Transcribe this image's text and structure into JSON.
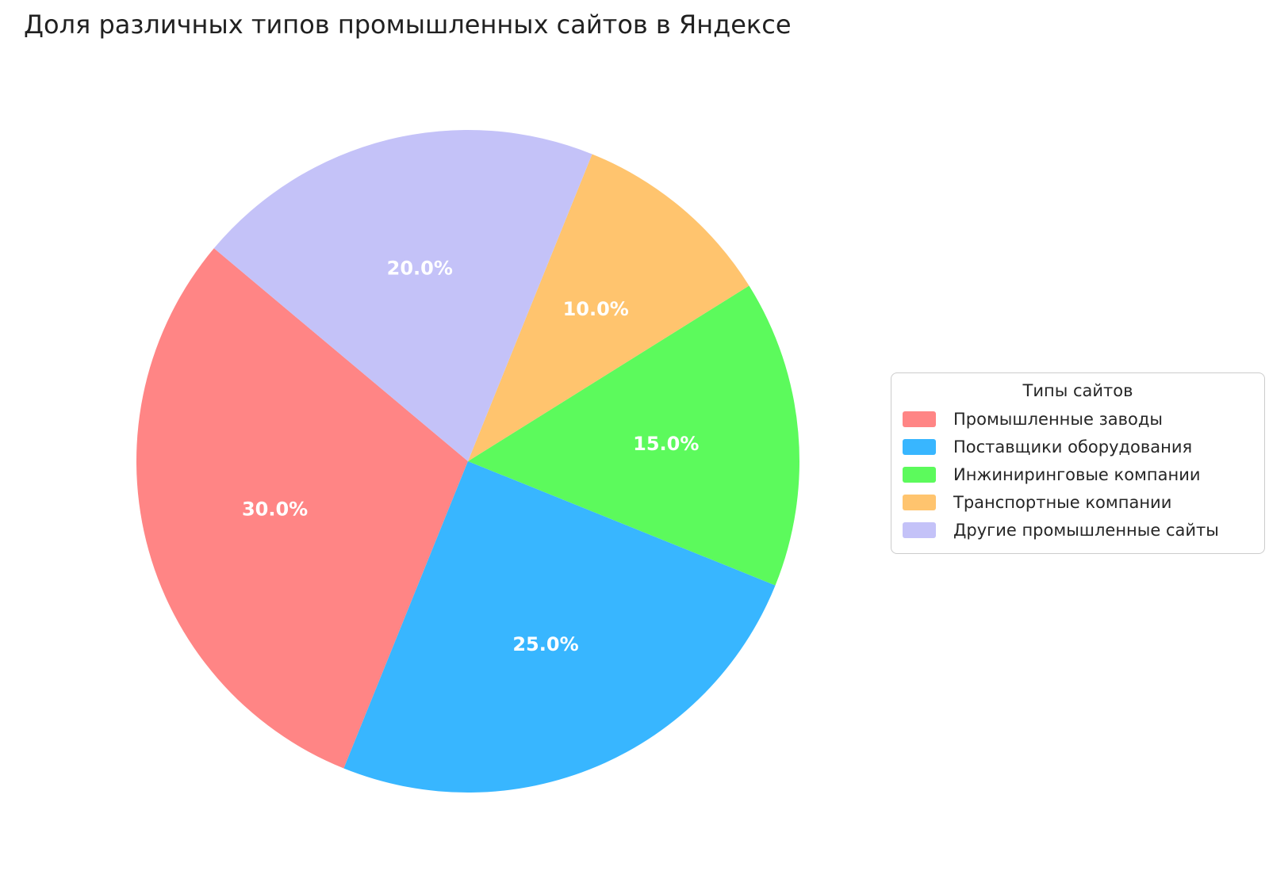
{
  "title": "Доля различных типов промышленных сайтов в Яндексе",
  "legend": {
    "title": "Типы сайтов"
  },
  "chart_data": {
    "type": "pie",
    "title": "Доля различных типов промышленных сайтов в Яндексе",
    "legend_title": "Типы сайтов",
    "legend_position": "right",
    "start_angle_deg": 140,
    "direction": "counterclockwise",
    "pct_label_color": "#ffffff",
    "slices": [
      {
        "label": "Промышленные заводы",
        "value": 30.0,
        "pct_label": "30.0%",
        "color": "#FF8585"
      },
      {
        "label": "Поставщики оборудования",
        "value": 25.0,
        "pct_label": "25.0%",
        "color": "#38B6FF"
      },
      {
        "label": "Инжиниринговые компании",
        "value": 15.0,
        "pct_label": "15.0%",
        "color": "#5CFA5C"
      },
      {
        "label": "Транспортные компании",
        "value": 10.0,
        "pct_label": "10.0%",
        "color": "#FFC46E"
      },
      {
        "label": "Другие промышленные сайты",
        "value": 20.0,
        "pct_label": "20.0%",
        "color": "#C4C2F8"
      }
    ]
  }
}
